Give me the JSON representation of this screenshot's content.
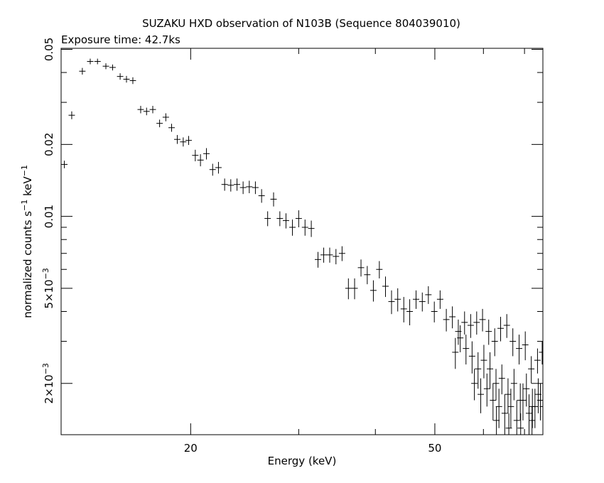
{
  "chart_data": {
    "type": "scatter",
    "title": "SUZAKU HXD observation of N103B (Sequence 804039010)",
    "subtitle": "Exposure time: 42.7ks",
    "xlabel": "Energy (keV)",
    "ylabel_main": "normalized counts s",
    "ylabel_sup1": "−1",
    "ylabel_mid": " keV",
    "ylabel_sup2": "−1",
    "x_scale": "log",
    "y_scale": "log",
    "xlim": [
      12.3,
      75
    ],
    "ylim": [
      0.00122,
      0.0505
    ],
    "x_ticks_major": [
      20,
      50
    ],
    "x_tick_labels": [
      "20",
      "50"
    ],
    "x_ticks_minor": [
      30,
      40,
      60,
      70
    ],
    "y_ticks_major": [
      0.002,
      0.005,
      0.01,
      0.02,
      0.05
    ],
    "y_tick_labels": [
      {
        "mant": "2×10",
        "exp": "−3"
      },
      {
        "mant": "5×10",
        "exp": "−3"
      },
      {
        "mant": "0.01",
        "exp": ""
      },
      {
        "mant": "0.02",
        "exp": ""
      },
      {
        "mant": "0.05",
        "exp": ""
      }
    ],
    "y_ticks_minor": [
      0.003,
      0.004,
      0.006,
      0.007,
      0.008,
      0.009,
      0.03,
      0.04
    ],
    "grid": false,
    "color": "#000000",
    "points": [
      [
        12.45,
        0.0165,
        0.0006
      ],
      [
        12.8,
        0.0265,
        0.001
      ],
      [
        13.32,
        0.0405,
        0.0013
      ],
      [
        13.72,
        0.0445,
        0.0012
      ],
      [
        14.1,
        0.0445,
        0.0012
      ],
      [
        14.55,
        0.0425,
        0.0012
      ],
      [
        14.92,
        0.042,
        0.0012
      ],
      [
        15.35,
        0.0385,
        0.0012
      ],
      [
        15.72,
        0.0375,
        0.0012
      ],
      [
        16.1,
        0.037,
        0.0012
      ],
      [
        16.58,
        0.028,
        0.001
      ],
      [
        16.95,
        0.0275,
        0.001
      ],
      [
        17.35,
        0.028,
        0.001
      ],
      [
        17.8,
        0.0245,
        0.0009
      ],
      [
        18.22,
        0.026,
        0.001
      ],
      [
        18.62,
        0.0235,
        0.0009
      ],
      [
        19.02,
        0.021,
        0.0009
      ],
      [
        19.45,
        0.0205,
        0.0009
      ],
      [
        19.85,
        0.0208,
        0.0009
      ],
      [
        20.35,
        0.018,
        0.001
      ],
      [
        20.75,
        0.0172,
        0.001
      ],
      [
        21.22,
        0.0183,
        0.001
      ],
      [
        21.72,
        0.0157,
        0.0009
      ],
      [
        22.2,
        0.016,
        0.0009
      ],
      [
        22.72,
        0.0136,
        0.0008
      ],
      [
        23.25,
        0.0135,
        0.0008
      ],
      [
        23.8,
        0.0136,
        0.0008
      ],
      [
        24.35,
        0.0132,
        0.0008
      ],
      [
        24.92,
        0.0133,
        0.0008
      ],
      [
        25.5,
        0.0132,
        0.0008
      ],
      [
        26.1,
        0.0122,
        0.0008
      ],
      [
        26.7,
        0.0098,
        0.0007
      ],
      [
        27.3,
        0.0118,
        0.0008
      ],
      [
        27.95,
        0.0098,
        0.0007
      ],
      [
        28.6,
        0.0096,
        0.0007
      ],
      [
        29.3,
        0.009,
        0.0007
      ],
      [
        30.0,
        0.0098,
        0.0008
      ],
      [
        30.72,
        0.009,
        0.0007
      ],
      [
        31.45,
        0.0089,
        0.0007
      ],
      [
        32.25,
        0.0066,
        0.0005
      ],
      [
        32.95,
        0.0069,
        0.0005
      ],
      [
        33.7,
        0.0069,
        0.0005
      ],
      [
        34.5,
        0.0068,
        0.0005
      ],
      [
        35.3,
        0.007,
        0.0005
      ],
      [
        36.15,
        0.005,
        0.0005
      ],
      [
        37.0,
        0.005,
        0.0005
      ],
      [
        37.9,
        0.0061,
        0.0005
      ],
      [
        38.8,
        0.0057,
        0.0005
      ],
      [
        39.7,
        0.0049,
        0.0005
      ],
      [
        40.6,
        0.006,
        0.0005
      ],
      [
        41.55,
        0.0051,
        0.0005
      ],
      [
        42.5,
        0.0044,
        0.0005
      ],
      [
        43.5,
        0.0045,
        0.0005
      ],
      [
        44.5,
        0.0041,
        0.0005
      ],
      [
        45.5,
        0.004,
        0.0005
      ],
      [
        46.6,
        0.0045,
        0.0004
      ],
      [
        47.7,
        0.0044,
        0.0004
      ],
      [
        48.8,
        0.0047,
        0.0004
      ],
      [
        49.9,
        0.004,
        0.0004
      ],
      [
        51.0,
        0.0045,
        0.0004
      ],
      [
        52.2,
        0.0037,
        0.0004
      ],
      [
        53.4,
        0.0038,
        0.0004
      ],
      [
        54.6,
        0.0033,
        0.0004
      ],
      [
        55.9,
        0.0036,
        0.0004
      ],
      [
        57.2,
        0.0035,
        0.0004
      ],
      [
        58.5,
        0.0036,
        0.0004
      ],
      [
        59.8,
        0.0037,
        0.0004
      ],
      [
        61.2,
        0.0033,
        0.0004
      ],
      [
        62.6,
        0.003,
        0.0004
      ],
      [
        64.0,
        0.0034,
        0.0004
      ],
      [
        65.5,
        0.0035,
        0.0004
      ],
      [
        67.0,
        0.003,
        0.0004
      ],
      [
        68.6,
        0.0028,
        0.0004
      ],
      [
        70.2,
        0.0029,
        0.0004
      ],
      [
        71.8,
        0.0023,
        0.0003
      ],
      [
        73.5,
        0.0025,
        0.0003
      ],
      [
        74.8,
        0.0027,
        0.0003
      ],
      [
        54.0,
        0.0027,
        0.0004
      ],
      [
        55.0,
        0.0031,
        0.0004
      ],
      [
        56.2,
        0.0028,
        0.0004
      ],
      [
        57.5,
        0.0026,
        0.0004
      ],
      [
        58.8,
        0.0023,
        0.0004
      ],
      [
        60.1,
        0.0025,
        0.0004
      ],
      [
        61.5,
        0.0023,
        0.0004
      ],
      [
        62.9,
        0.002,
        0.0003
      ],
      [
        64.3,
        0.0021,
        0.0003
      ],
      [
        65.8,
        0.0018,
        0.0003
      ],
      [
        67.3,
        0.002,
        0.0003
      ],
      [
        68.9,
        0.0017,
        0.0003
      ],
      [
        70.5,
        0.0019,
        0.0003
      ],
      [
        72.1,
        0.0016,
        0.0003
      ],
      [
        73.7,
        0.0018,
        0.0003
      ],
      [
        75.0,
        0.0016,
        0.0003
      ],
      [
        58.0,
        0.002,
        0.0003
      ],
      [
        59.4,
        0.0018,
        0.0003
      ],
      [
        60.8,
        0.0019,
        0.0003
      ],
      [
        62.2,
        0.0017,
        0.0003
      ],
      [
        63.6,
        0.0016,
        0.0003
      ],
      [
        65.0,
        0.0015,
        0.0003
      ],
      [
        66.5,
        0.0016,
        0.0003
      ],
      [
        68.0,
        0.0014,
        0.0003
      ],
      [
        69.6,
        0.0017,
        0.0003
      ],
      [
        71.2,
        0.0015,
        0.0003
      ],
      [
        72.8,
        0.0016,
        0.0003
      ],
      [
        74.3,
        0.0017,
        0.0003
      ],
      [
        63.0,
        0.0014,
        0.0002
      ],
      [
        66.0,
        0.0013,
        0.0002
      ],
      [
        69.0,
        0.0013,
        0.0002
      ],
      [
        72.0,
        0.0014,
        0.0002
      ]
    ]
  }
}
